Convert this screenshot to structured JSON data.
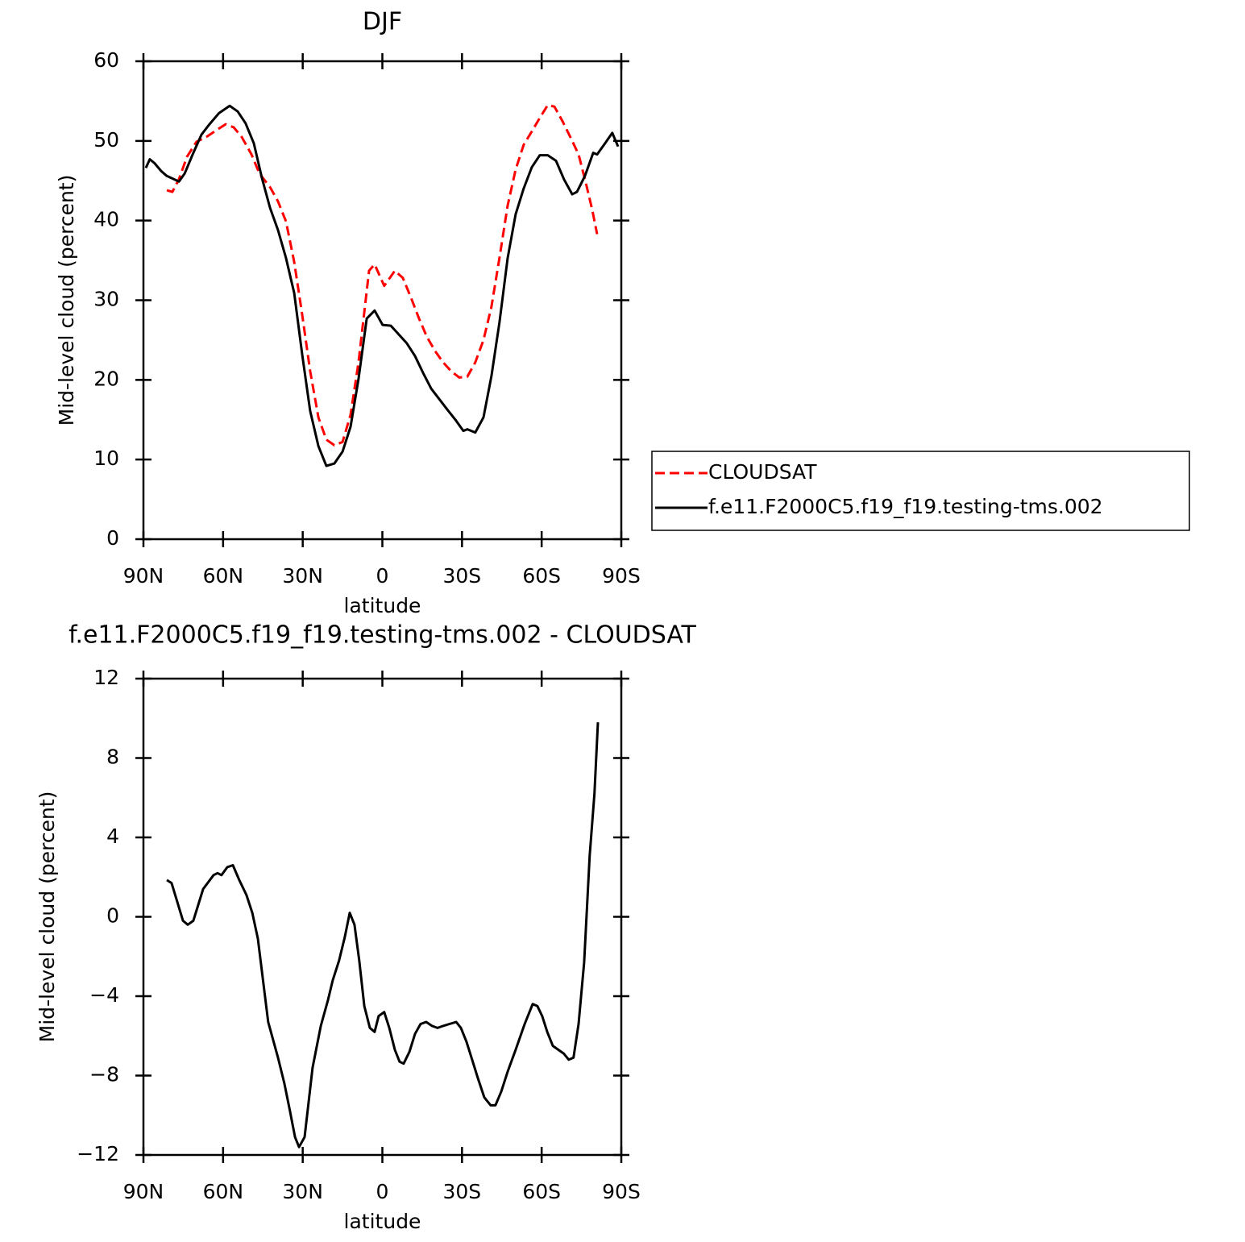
{
  "chart_data": [
    {
      "type": "line",
      "title": "DJF",
      "x_label": "latitude",
      "y_label": "Mid-level cloud (percent)",
      "xlim": [
        90,
        -90
      ],
      "xticks": [
        {
          "value": 90,
          "label": "90N"
        },
        {
          "value": 60,
          "label": "60N"
        },
        {
          "value": 30,
          "label": "30N"
        },
        0,
        {
          "value": -30,
          "label": "30S"
        },
        {
          "value": -60,
          "label": "60S"
        },
        {
          "value": -90,
          "label": "90S"
        }
      ],
      "ylim": [
        0,
        60
      ],
      "yticks": [
        0,
        10,
        20,
        30,
        40,
        50,
        60
      ],
      "legend": "right",
      "series": [
        {
          "name": "CLOUDSAT",
          "color": "#ff0000",
          "line_style": "dashed",
          "x": [
            81.2,
            79.1,
            76.6,
            73.6,
            70.0,
            66.3,
            62.7,
            59.0,
            56.0,
            53.0,
            49.3,
            46.3,
            42.3,
            39.3,
            36.3,
            33.2,
            30.2,
            27.2,
            24.1,
            21.1,
            18.1,
            15.0,
            12.0,
            9.0,
            5.0,
            2.9,
            -0.7,
            -4.7,
            -7.7,
            -10.8,
            -13.8,
            -16.8,
            -19.9,
            -22.9,
            -25.9,
            -29.0,
            -32.0,
            -35.0,
            -38.1,
            -41.1,
            -44.1,
            -47.2,
            -50.2,
            -53.2,
            -56.3,
            -59.3,
            -62.3,
            -64.8,
            -67.8,
            -70.8,
            -73.9,
            -76.9,
            -79.0,
            -80.9
          ],
          "values": [
            43.8,
            43.6,
            45.2,
            48.0,
            49.9,
            50.5,
            51.3,
            52.1,
            51.7,
            50.5,
            48.3,
            45.9,
            44.2,
            42.4,
            39.9,
            34.8,
            28.2,
            21.1,
            15.3,
            12.5,
            11.8,
            12.2,
            15.6,
            22.2,
            33.7,
            34.5,
            31.8,
            33.7,
            32.8,
            30.3,
            27.7,
            25.4,
            23.6,
            22.2,
            21.1,
            20.3,
            20.4,
            22.2,
            25.0,
            29.2,
            35.3,
            41.9,
            46.4,
            49.5,
            51.2,
            52.9,
            54.5,
            54.3,
            52.5,
            50.5,
            48.3,
            44.4,
            41.4,
            38.3
          ]
        },
        {
          "name": "f.e11.F2000C5.f19_f19.testing-tms.002",
          "color": "#000000",
          "line_style": "solid",
          "x": [
            89.1,
            87.6,
            85.8,
            83.3,
            81.2,
            76.6,
            74.5,
            71.2,
            68.1,
            65.1,
            61.5,
            57.5,
            54.5,
            51.5,
            48.4,
            45.4,
            42.3,
            39.3,
            36.3,
            33.2,
            30.2,
            27.2,
            24.1,
            21.1,
            18.1,
            15.0,
            12.0,
            9.0,
            5.9,
            2.9,
            -0.1,
            -3.2,
            -6.2,
            -9.2,
            -12.3,
            -15.3,
            -18.4,
            -21.4,
            -24.4,
            -27.5,
            -30.5,
            -32.0,
            -35.0,
            -38.1,
            -41.1,
            -44.1,
            -47.2,
            -50.2,
            -53.2,
            -56.3,
            -59.3,
            -62.3,
            -65.4,
            -68.4,
            -71.5,
            -73.3,
            -76.3,
            -79.4,
            -80.9,
            -83.9,
            -86.6,
            -88.8
          ],
          "values": [
            46.6,
            47.7,
            47.2,
            46.2,
            45.6,
            44.9,
            45.9,
            48.5,
            50.8,
            52.1,
            53.5,
            54.4,
            53.7,
            52.2,
            49.7,
            45.4,
            41.6,
            38.8,
            35.3,
            30.9,
            23.2,
            16.1,
            11.7,
            9.2,
            9.5,
            11.0,
            14.1,
            20.1,
            27.7,
            28.7,
            26.9,
            26.8,
            25.7,
            24.6,
            23.0,
            20.9,
            18.9,
            17.6,
            16.3,
            15.0,
            13.6,
            13.8,
            13.4,
            15.3,
            20.5,
            27.2,
            35.3,
            40.8,
            44.0,
            46.7,
            48.2,
            48.2,
            47.5,
            45.2,
            43.3,
            43.6,
            45.6,
            48.5,
            48.3,
            49.7,
            51.0,
            49.3
          ]
        }
      ]
    },
    {
      "type": "line",
      "title": "f.e11.F2000C5.f19_f19.testing-tms.002 - CLOUDSAT",
      "x_label": "latitude",
      "y_label": "Mid-level cloud (percent)",
      "xlim": [
        90,
        -90
      ],
      "xticks": [
        {
          "value": 90,
          "label": "90N"
        },
        {
          "value": 60,
          "label": "60N"
        },
        {
          "value": 30,
          "label": "30N"
        },
        0,
        {
          "value": -30,
          "label": "30S"
        },
        {
          "value": -60,
          "label": "60S"
        },
        {
          "value": -90,
          "label": "90S"
        }
      ],
      "ylim": [
        -12,
        12
      ],
      "yticks": [
        {
          "value": -12,
          "label": "−12"
        },
        {
          "value": -8,
          "label": "−8"
        },
        {
          "value": -4,
          "label": "−4"
        },
        0,
        4,
        8,
        12
      ],
      "series": [
        {
          "color": "#000000",
          "line_style": "solid",
          "x": [
            81.2,
            79.4,
            75.1,
            73.3,
            71.2,
            67.5,
            63.6,
            62.1,
            60.6,
            58.4,
            56.3,
            53.9,
            51.2,
            49.0,
            46.9,
            43.0,
            39.3,
            36.9,
            34.8,
            32.9,
            31.4,
            29.3,
            26.3,
            23.2,
            20.5,
            18.7,
            16.3,
            14.1,
            12.3,
            10.5,
            8.7,
            6.8,
            4.7,
            2.9,
            1.4,
            -0.7,
            -2.6,
            -4.7,
            -6.5,
            -8.0,
            -10.2,
            -12.3,
            -14.4,
            -16.5,
            -18.7,
            -20.8,
            -22.9,
            -25.3,
            -27.8,
            -29.6,
            -31.7,
            -33.8,
            -35.9,
            -38.4,
            -40.8,
            -42.6,
            -44.8,
            -47.2,
            -50.2,
            -53.6,
            -56.6,
            -58.4,
            -60.2,
            -62.1,
            -64.2,
            -66.3,
            -68.4,
            -70.2,
            -72.0,
            -73.9,
            -76.0,
            -78.1,
            -79.9,
            -81.2
          ],
          "values": [
            1.85,
            1.7,
            -0.2,
            -0.4,
            -0.2,
            1.4,
            2.1,
            2.2,
            2.1,
            2.5,
            2.6,
            1.85,
            1.1,
            0.2,
            -1.1,
            -5.3,
            -7.1,
            -8.4,
            -9.8,
            -11.1,
            -11.6,
            -11.1,
            -7.6,
            -5.5,
            -4.2,
            -3.2,
            -2.2,
            -1.0,
            0.2,
            -0.4,
            -2.2,
            -4.5,
            -5.6,
            -5.8,
            -5.0,
            -4.8,
            -5.6,
            -6.7,
            -7.3,
            -7.4,
            -6.8,
            -5.9,
            -5.4,
            -5.3,
            -5.5,
            -5.6,
            -5.5,
            -5.4,
            -5.3,
            -5.6,
            -6.3,
            -7.2,
            -8.1,
            -9.1,
            -9.5,
            -9.5,
            -8.8,
            -7.8,
            -6.7,
            -5.4,
            -4.4,
            -4.5,
            -5.0,
            -5.8,
            -6.5,
            -6.7,
            -6.9,
            -7.2,
            -7.1,
            -5.4,
            -2.3,
            3.1,
            6.2,
            9.8
          ]
        }
      ]
    }
  ]
}
